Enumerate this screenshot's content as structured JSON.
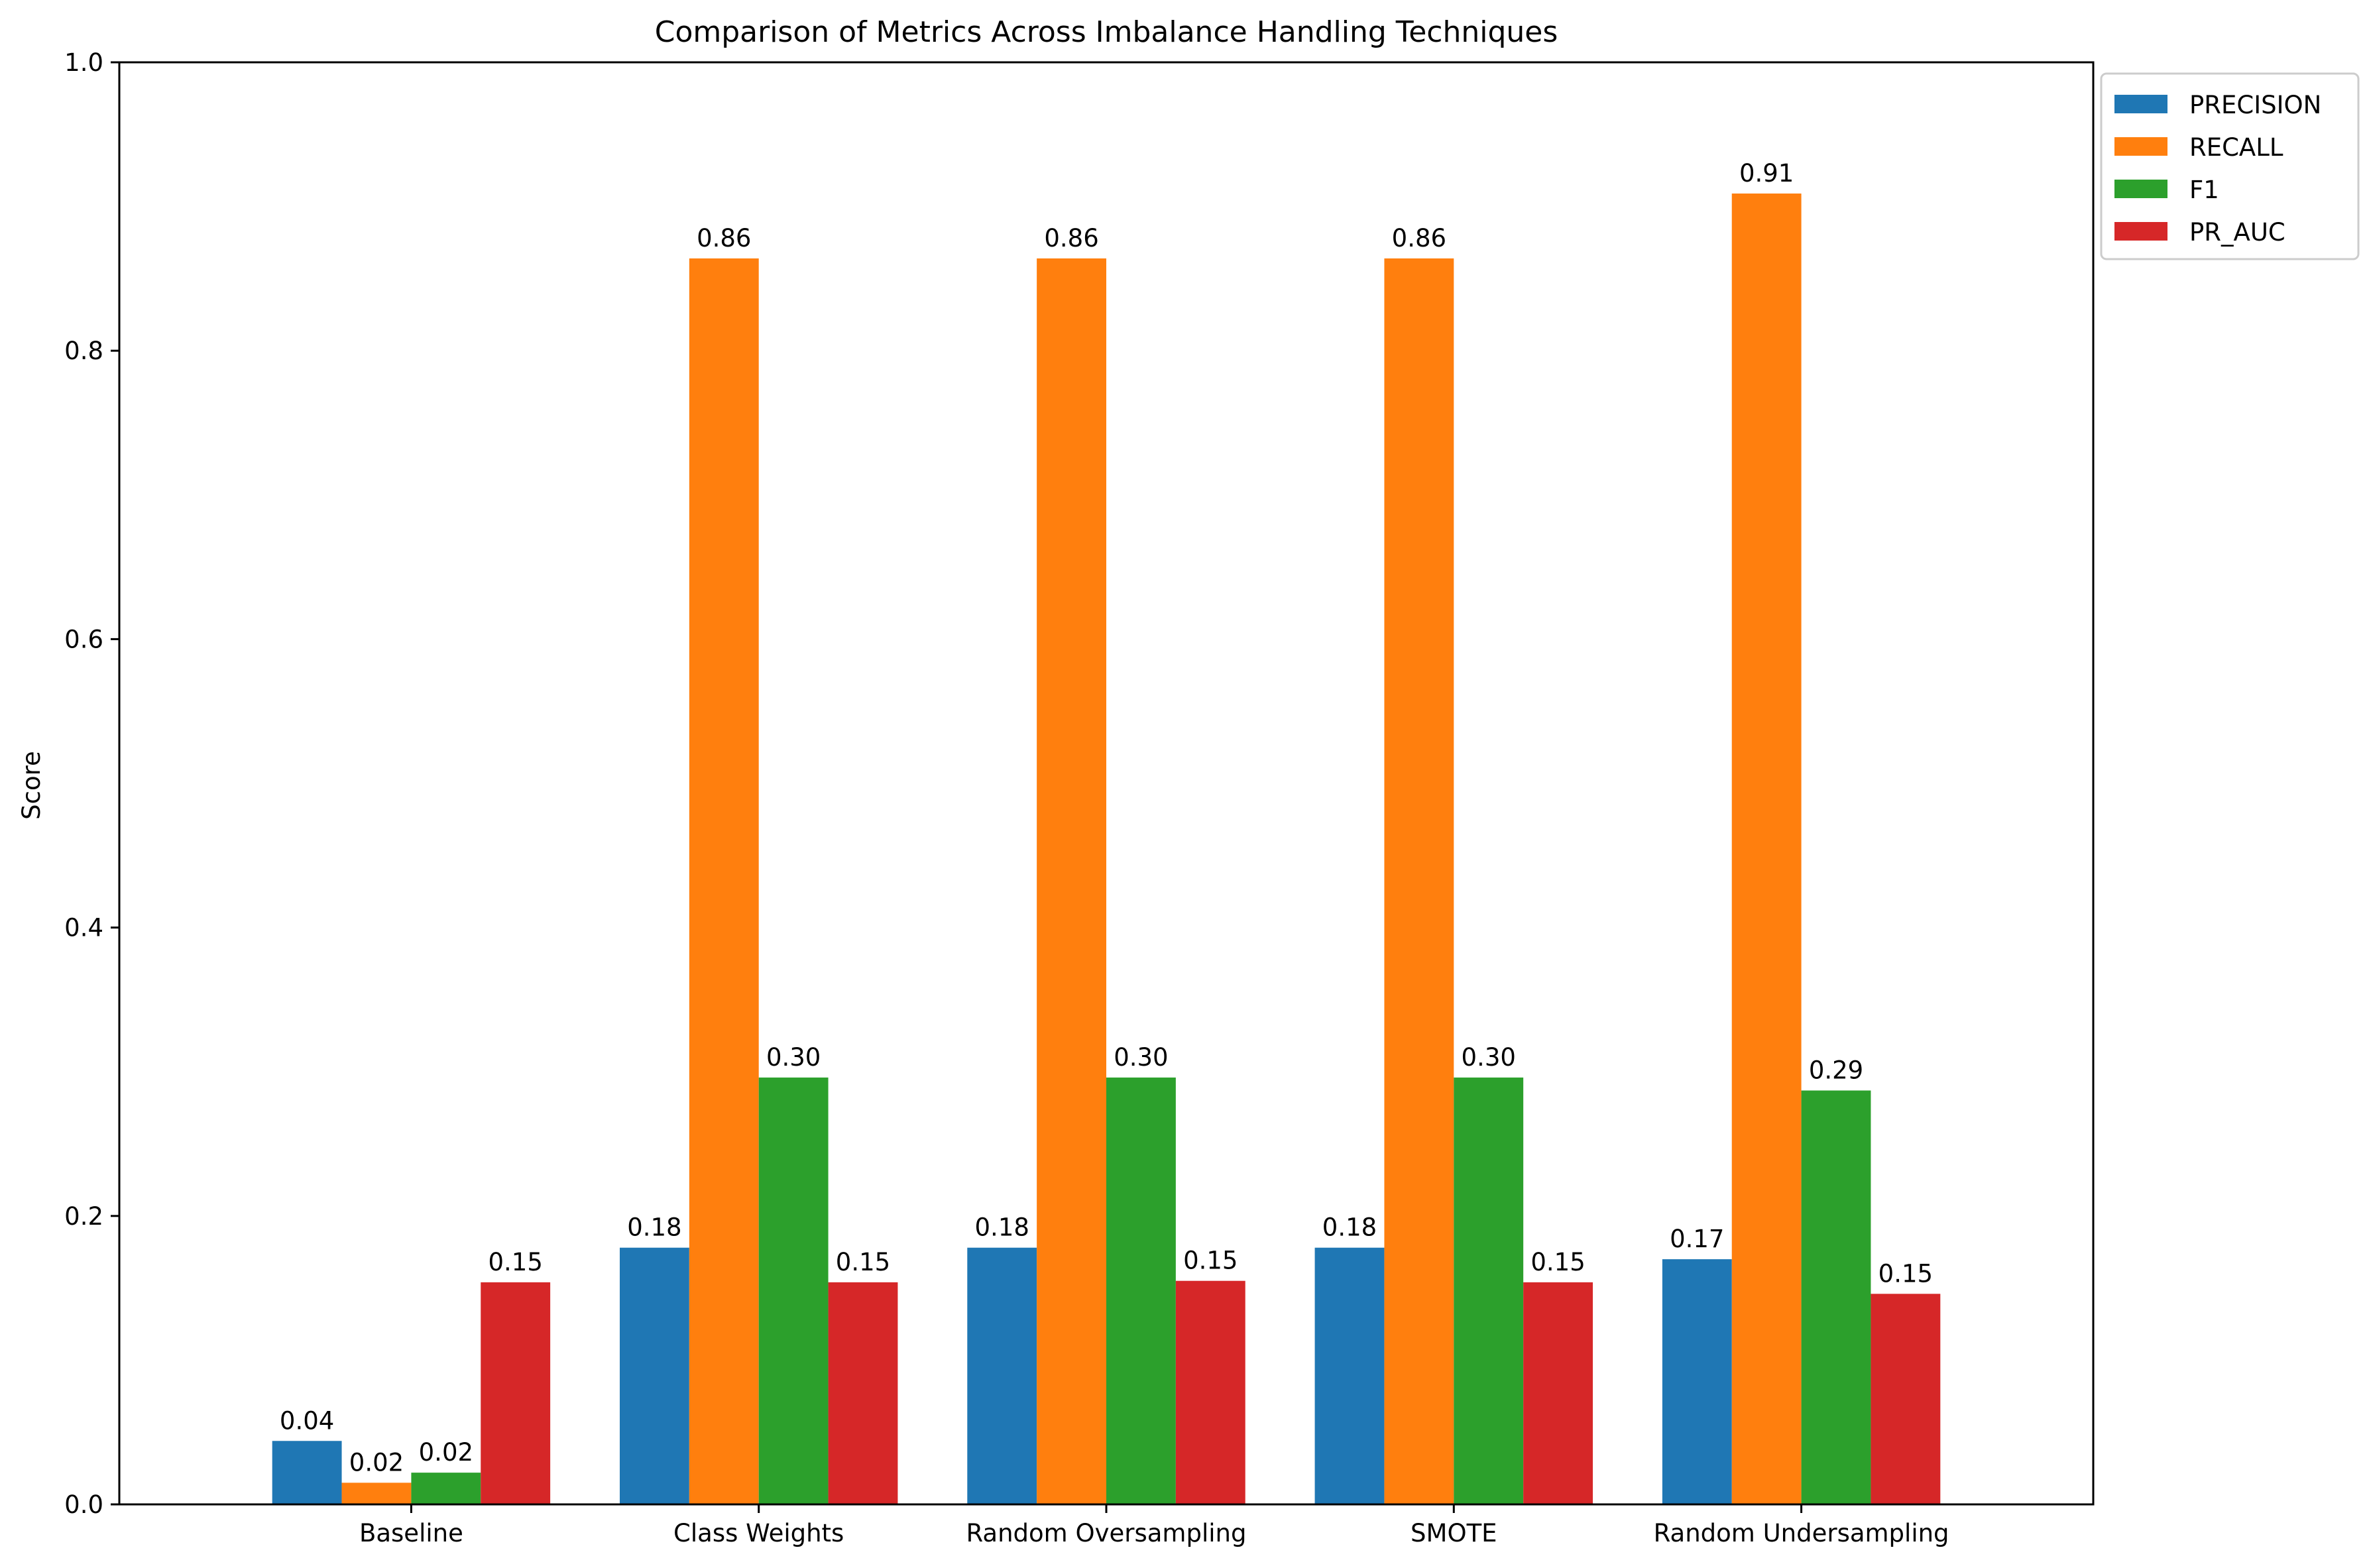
{
  "chart_data": {
    "type": "bar",
    "title": "Comparison of Metrics Across Imbalance Handling Techniques",
    "xlabel": "",
    "ylabel": "Score",
    "ylim": [
      0,
      1.0
    ],
    "yticks": [
      "0.0",
      "0.2",
      "0.4",
      "0.6",
      "0.8",
      "1.0"
    ],
    "categories": [
      "Baseline",
      "Class Weights",
      "Random Oversampling",
      "SMOTE",
      "Random Undersampling"
    ],
    "series": [
      {
        "name": "PRECISION",
        "color": "#1f77b4",
        "values": [
          0.044,
          0.178,
          0.178,
          0.178,
          0.17
        ],
        "labels": [
          "0.04",
          "0.18",
          "0.18",
          "0.18",
          "0.17"
        ]
      },
      {
        "name": "RECALL",
        "color": "#ff7f0e",
        "values": [
          0.015,
          0.864,
          0.864,
          0.864,
          0.909
        ],
        "labels": [
          "0.02",
          "0.86",
          "0.86",
          "0.86",
          "0.91"
        ]
      },
      {
        "name": "F1",
        "color": "#2ca02c",
        "values": [
          0.022,
          0.296,
          0.296,
          0.296,
          0.287
        ],
        "labels": [
          "0.02",
          "0.30",
          "0.30",
          "0.30",
          "0.29"
        ]
      },
      {
        "name": "PR_AUC",
        "color": "#d62728",
        "values": [
          0.154,
          0.154,
          0.155,
          0.154,
          0.146
        ],
        "labels": [
          "0.15",
          "0.15",
          "0.15",
          "0.15",
          "0.15"
        ]
      }
    ],
    "grid": false,
    "legend_position": "outside top-right"
  }
}
